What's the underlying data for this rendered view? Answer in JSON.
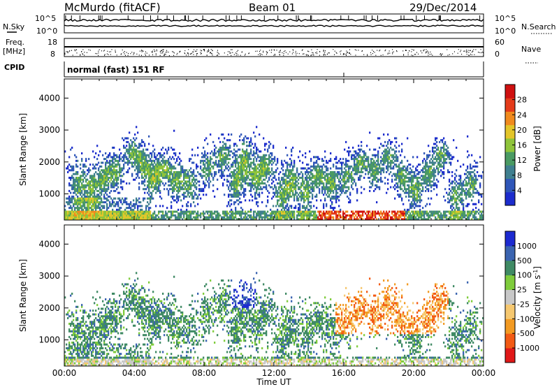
{
  "header": {
    "station": "McMurdo (fitACF)",
    "beam": "Beam 01",
    "date": "29/Dec/2014"
  },
  "top_panels": {
    "nsky_label": "N.Sky",
    "nsearch_label": "N.Search",
    "freq_label": "Freq.",
    "freq_unit": "[MHz]",
    "nave_label": "Nave",
    "cpid_label": "CPID",
    "cpid_text": "normal (fast) 151 RF",
    "noise_ticks_left": [
      "10^5",
      "10^0"
    ],
    "noise_ticks_right": [
      "10^5",
      "10^0"
    ],
    "freq_ticks": [
      "18",
      "8"
    ],
    "nave_ticks": [
      "60",
      "0"
    ]
  },
  "colors": {
    "power": [
      "#1c2ccd",
      "#2f56b8",
      "#3f7f8f",
      "#4a9a63",
      "#8fc43a",
      "#e3c52a",
      "#f08a1e",
      "#e43b1a",
      "#cf1010"
    ],
    "velocity": [
      "#e01818",
      "#f25a14",
      "#f29a22",
      "#f6c870",
      "#c8c8c8",
      "#7fcc3c",
      "#3f8a64",
      "#3a64b0",
      "#1c2ad0"
    ]
  },
  "chart_data": [
    {
      "type": "heatmap",
      "title": "",
      "xlabel": "Time UT",
      "ylabel": "Slant Range [km]",
      "x_ticks": [
        "00:00",
        "04:00",
        "08:00",
        "12:00",
        "16:00",
        "20:00",
        "00:00"
      ],
      "xlim_hours": [
        0,
        24
      ],
      "y_ticks": [
        "1000",
        "2000",
        "3000",
        "4000"
      ],
      "ylim_km": [
        180,
        4600
      ],
      "colorbar": {
        "label": "Power [dB]",
        "ticks": [
          "4",
          "8",
          "12",
          "16",
          "20",
          "24",
          "28"
        ],
        "range": [
          0,
          30
        ]
      }
    },
    {
      "type": "heatmap",
      "title": "",
      "xlabel": "Time UT",
      "ylabel": "Slant Range [km]",
      "x_ticks": [
        "00:00",
        "04:00",
        "08:00",
        "12:00",
        "16:00",
        "20:00",
        "00:00"
      ],
      "xlim_hours": [
        0,
        24
      ],
      "y_ticks": [
        "1000",
        "2000",
        "3000",
        "4000"
      ],
      "ylim_km": [
        180,
        4600
      ],
      "colorbar": {
        "label": "Velocity [m s",
        "label_sup": "-1",
        "label_end": "]",
        "ticks": [
          "-1000",
          "-500",
          "-100",
          "-25",
          "25",
          "100",
          "500",
          "1000"
        ]
      }
    }
  ]
}
